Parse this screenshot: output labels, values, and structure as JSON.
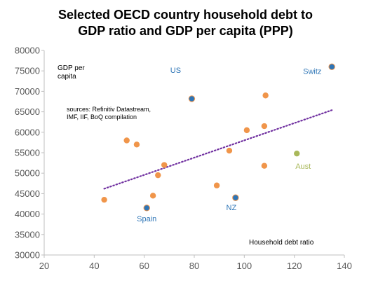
{
  "chart_data": {
    "type": "scatter",
    "title_lines": [
      "Selected OECD country household debt to",
      "GDP ratio and GDP per capita (PPP)"
    ],
    "xlim": [
      20,
      140
    ],
    "ylim": [
      30000,
      80000
    ],
    "x_ticks": [
      "20",
      "40",
      "60",
      "80",
      "100",
      "120",
      "140"
    ],
    "y_ticks": [
      "30000",
      "35000",
      "40000",
      "45000",
      "50000",
      "55000",
      "60000",
      "65000",
      "70000",
      "75000",
      "80000"
    ],
    "ylabel_lines": [
      "GDP per",
      "capita"
    ],
    "xlabel": "Household debt ratio",
    "source_lines": [
      "sources:  Refinitiv Datastream,",
      "IMF, IIF, BoQ compilation"
    ],
    "grid": false,
    "colors": {
      "others": "#F0954A",
      "highlight": "#2E75B6",
      "aust": "#A9B85A",
      "trend": "#7030A0",
      "axis": "#BFBFBF",
      "tick": "#595959"
    },
    "points": [
      {
        "x": 44,
        "y": 43500,
        "group": "others"
      },
      {
        "x": 53,
        "y": 58000,
        "group": "others"
      },
      {
        "x": 57,
        "y": 57000,
        "group": "others"
      },
      {
        "x": 63.5,
        "y": 44500,
        "group": "others"
      },
      {
        "x": 65.5,
        "y": 49500,
        "group": "others"
      },
      {
        "x": 68,
        "y": 52000,
        "group": "others"
      },
      {
        "x": 89,
        "y": 47000,
        "group": "others"
      },
      {
        "x": 94,
        "y": 55500,
        "group": "others"
      },
      {
        "x": 101,
        "y": 60500,
        "group": "others"
      },
      {
        "x": 108,
        "y": 61500,
        "group": "others"
      },
      {
        "x": 108.5,
        "y": 69000,
        "group": "others"
      },
      {
        "x": 108,
        "y": 51800,
        "group": "others"
      },
      {
        "x": 61,
        "y": 41500,
        "group": "highlight",
        "label": "Spain"
      },
      {
        "x": 79,
        "y": 68200,
        "group": "highlight",
        "label": "US"
      },
      {
        "x": 96.5,
        "y": 44000,
        "group": "highlight",
        "label": "NZ"
      },
      {
        "x": 135,
        "y": 76000,
        "group": "highlight",
        "label": "Switz"
      },
      {
        "x": 121,
        "y": 54800,
        "group": "aust",
        "label": "Aust"
      }
    ],
    "trendline": {
      "x": [
        44,
        135
      ],
      "y": [
        46200,
        65400
      ]
    }
  }
}
